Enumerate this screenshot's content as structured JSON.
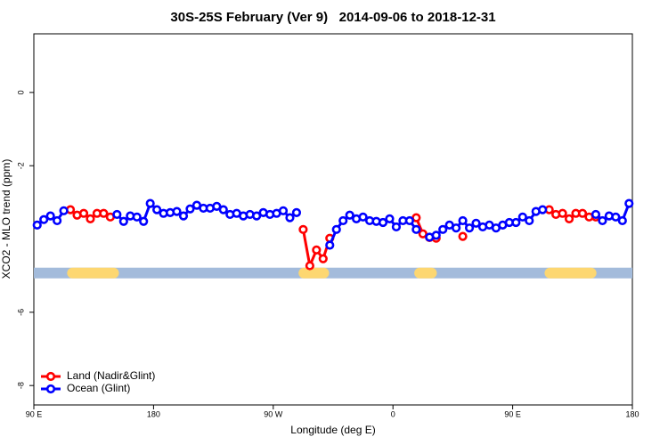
{
  "chart_data": {
    "type": "line",
    "title": "30S-25S February (Ver 9)   2014-09-06 to 2018-12-31",
    "xlabel": "Longitude (deg E)",
    "ylabel": "XCO2 - MLO trend (ppm)",
    "xlim": [
      90,
      540
    ],
    "ylim": [
      -8.53,
      1.6
    ],
    "xticks": [
      {
        "value": 90,
        "label": "90 E"
      },
      {
        "value": 180,
        "label": "180"
      },
      {
        "value": 270,
        "label": "90 W"
      },
      {
        "value": 360,
        "label": "0"
      },
      {
        "value": 450,
        "label": "90 E"
      },
      {
        "value": 540,
        "label": "180"
      }
    ],
    "yticks": [
      0,
      -2,
      -6,
      -8
    ],
    "legend": "bottom-left",
    "band": {
      "y": -4.93,
      "color": "#a3bbdb",
      "land_color": "#fdd771",
      "land": [
        [
          115,
          154
        ],
        [
          289,
          312
        ],
        [
          376,
          393
        ],
        [
          474,
          513
        ]
      ]
    },
    "x": [
      92.5,
      97.5,
      102.5,
      107.5,
      112.5,
      117.5,
      122.5,
      127.5,
      132.5,
      137.5,
      142.5,
      147.5,
      152.5,
      157.5,
      162.5,
      167.5,
      172.5,
      177.5,
      182.5,
      187.5,
      192.5,
      197.5,
      202.5,
      207.5,
      212.5,
      217.5,
      222.5,
      227.5,
      232.5,
      237.5,
      242.5,
      247.5,
      252.5,
      257.5,
      262.5,
      267.5,
      272.5,
      277.5,
      282.5,
      287.5,
      292.5,
      297.5,
      302.5,
      307.5,
      312.5,
      317.5,
      322.5,
      327.5,
      332.5,
      337.5,
      342.5,
      347.5,
      352.5,
      357.5,
      362.5,
      367.5,
      372.5,
      377.5,
      382.5,
      387.5,
      392.5,
      397.5,
      402.5,
      407.5,
      412.5,
      417.5,
      422.5,
      427.5,
      432.5,
      437.5,
      442.5,
      447.5,
      452.5,
      457.5,
      462.5,
      467.5,
      472.5,
      477.5,
      482.5,
      487.5,
      492.5,
      497.5,
      502.5,
      507.5,
      512.5,
      517.5,
      522.5,
      527.5,
      532.5,
      537.5
    ],
    "series": [
      {
        "name": "Land (Nadir&Glint)",
        "color": "#ff0000",
        "values": [
          null,
          null,
          null,
          null,
          null,
          -3.2,
          -3.35,
          -3.3,
          -3.45,
          -3.3,
          -3.3,
          -3.4,
          null,
          null,
          null,
          null,
          null,
          null,
          null,
          null,
          null,
          null,
          null,
          null,
          null,
          null,
          null,
          null,
          null,
          null,
          null,
          null,
          null,
          null,
          null,
          null,
          null,
          null,
          null,
          null,
          -3.74,
          -4.73,
          -4.3,
          -4.54,
          -3.98,
          null,
          null,
          null,
          null,
          null,
          null,
          null,
          null,
          null,
          null,
          null,
          null,
          -3.42,
          -3.86,
          -3.96,
          -3.98,
          null,
          null,
          null,
          -3.93,
          null,
          null,
          null,
          null,
          null,
          null,
          null,
          null,
          null,
          null,
          null,
          null,
          -3.2,
          -3.33,
          -3.3,
          -3.45,
          -3.3,
          -3.3,
          -3.4,
          -3.4,
          null,
          null,
          null,
          null,
          null
        ]
      },
      {
        "name": "Ocean (Glint)",
        "color": "#0000ff",
        "values": [
          -3.62,
          -3.47,
          -3.37,
          -3.5,
          -3.23,
          null,
          null,
          null,
          null,
          null,
          null,
          null,
          -3.33,
          -3.52,
          -3.37,
          -3.4,
          -3.52,
          -3.03,
          -3.2,
          -3.3,
          -3.28,
          -3.25,
          -3.37,
          -3.18,
          -3.08,
          -3.16,
          -3.16,
          -3.11,
          -3.2,
          -3.33,
          -3.3,
          -3.37,
          -3.33,
          -3.37,
          -3.28,
          -3.33,
          -3.3,
          -3.23,
          -3.42,
          -3.28,
          null,
          null,
          null,
          null,
          -4.17,
          -3.74,
          -3.5,
          -3.35,
          -3.45,
          -3.4,
          -3.5,
          -3.52,
          -3.55,
          -3.45,
          -3.67,
          -3.5,
          -3.5,
          -3.74,
          null,
          -3.95,
          -3.9,
          -3.74,
          -3.62,
          -3.7,
          -3.5,
          -3.7,
          -3.57,
          -3.67,
          -3.62,
          -3.7,
          -3.62,
          -3.55,
          -3.55,
          -3.4,
          -3.5,
          -3.25,
          -3.2,
          null,
          null,
          null,
          null,
          null,
          null,
          null,
          -3.33,
          -3.5,
          -3.37,
          -3.4,
          -3.5,
          -3.03
        ]
      }
    ]
  }
}
